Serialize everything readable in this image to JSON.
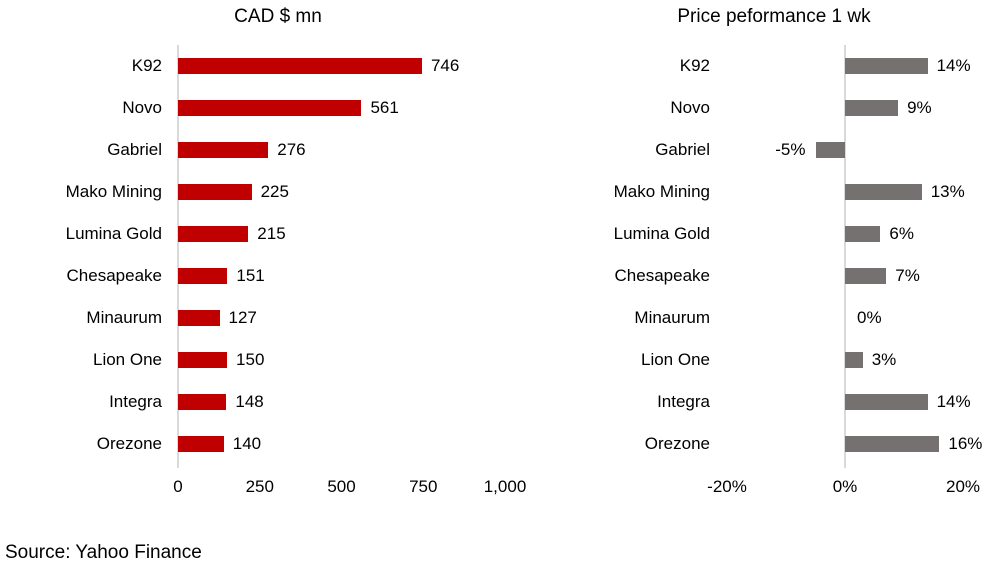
{
  "source": "Source: Yahoo Finance",
  "colors": {
    "market_cap_bar": "#c00000",
    "performance_bar": "#767171",
    "axis_line": "#d9d9d9",
    "text": "#000000",
    "background": "#ffffff"
  },
  "chart_data": [
    {
      "type": "bar",
      "orientation": "horizontal",
      "title": "CAD $ mn",
      "categories": [
        "K92",
        "Novo",
        "Gabriel",
        "Mako Mining",
        "Lumina Gold",
        "Chesapeake",
        "Minaurum",
        "Lion One",
        "Integra",
        "Orezone"
      ],
      "values": [
        746,
        561,
        276,
        225,
        215,
        151,
        127,
        150,
        148,
        140
      ],
      "value_labels": [
        "746",
        "561",
        "276",
        "225",
        "215",
        "151",
        "127",
        "150",
        "148",
        "140"
      ],
      "xlim": [
        0,
        1000
      ],
      "x_ticks": [
        {
          "value": 0,
          "label": "0"
        },
        {
          "value": 250,
          "label": "250"
        },
        {
          "value": 500,
          "label": "500"
        },
        {
          "value": 750,
          "label": "750"
        },
        {
          "value": 1000,
          "label": "1,000"
        }
      ],
      "bar_color": "#c00000",
      "grid": false,
      "legend": false
    },
    {
      "type": "bar",
      "orientation": "horizontal",
      "title": "Price peformance 1 wk",
      "categories": [
        "K92",
        "Novo",
        "Gabriel",
        "Mako Mining",
        "Lumina Gold",
        "Chesapeake",
        "Minaurum",
        "Lion One",
        "Integra",
        "Orezone"
      ],
      "values": [
        14,
        9,
        -5,
        13,
        6,
        7,
        0,
        3,
        14,
        16
      ],
      "value_labels": [
        "14%",
        "9%",
        "-5%",
        "13%",
        "6%",
        "7%",
        "0%",
        "3%",
        "14%",
        "16%"
      ],
      "xlim": [
        -20,
        20
      ],
      "x_ticks": [
        {
          "value": -20,
          "label": "-20%"
        },
        {
          "value": 0,
          "label": "0%"
        },
        {
          "value": 20,
          "label": "20%"
        }
      ],
      "bar_color": "#767171",
      "grid": false,
      "legend": false
    }
  ]
}
